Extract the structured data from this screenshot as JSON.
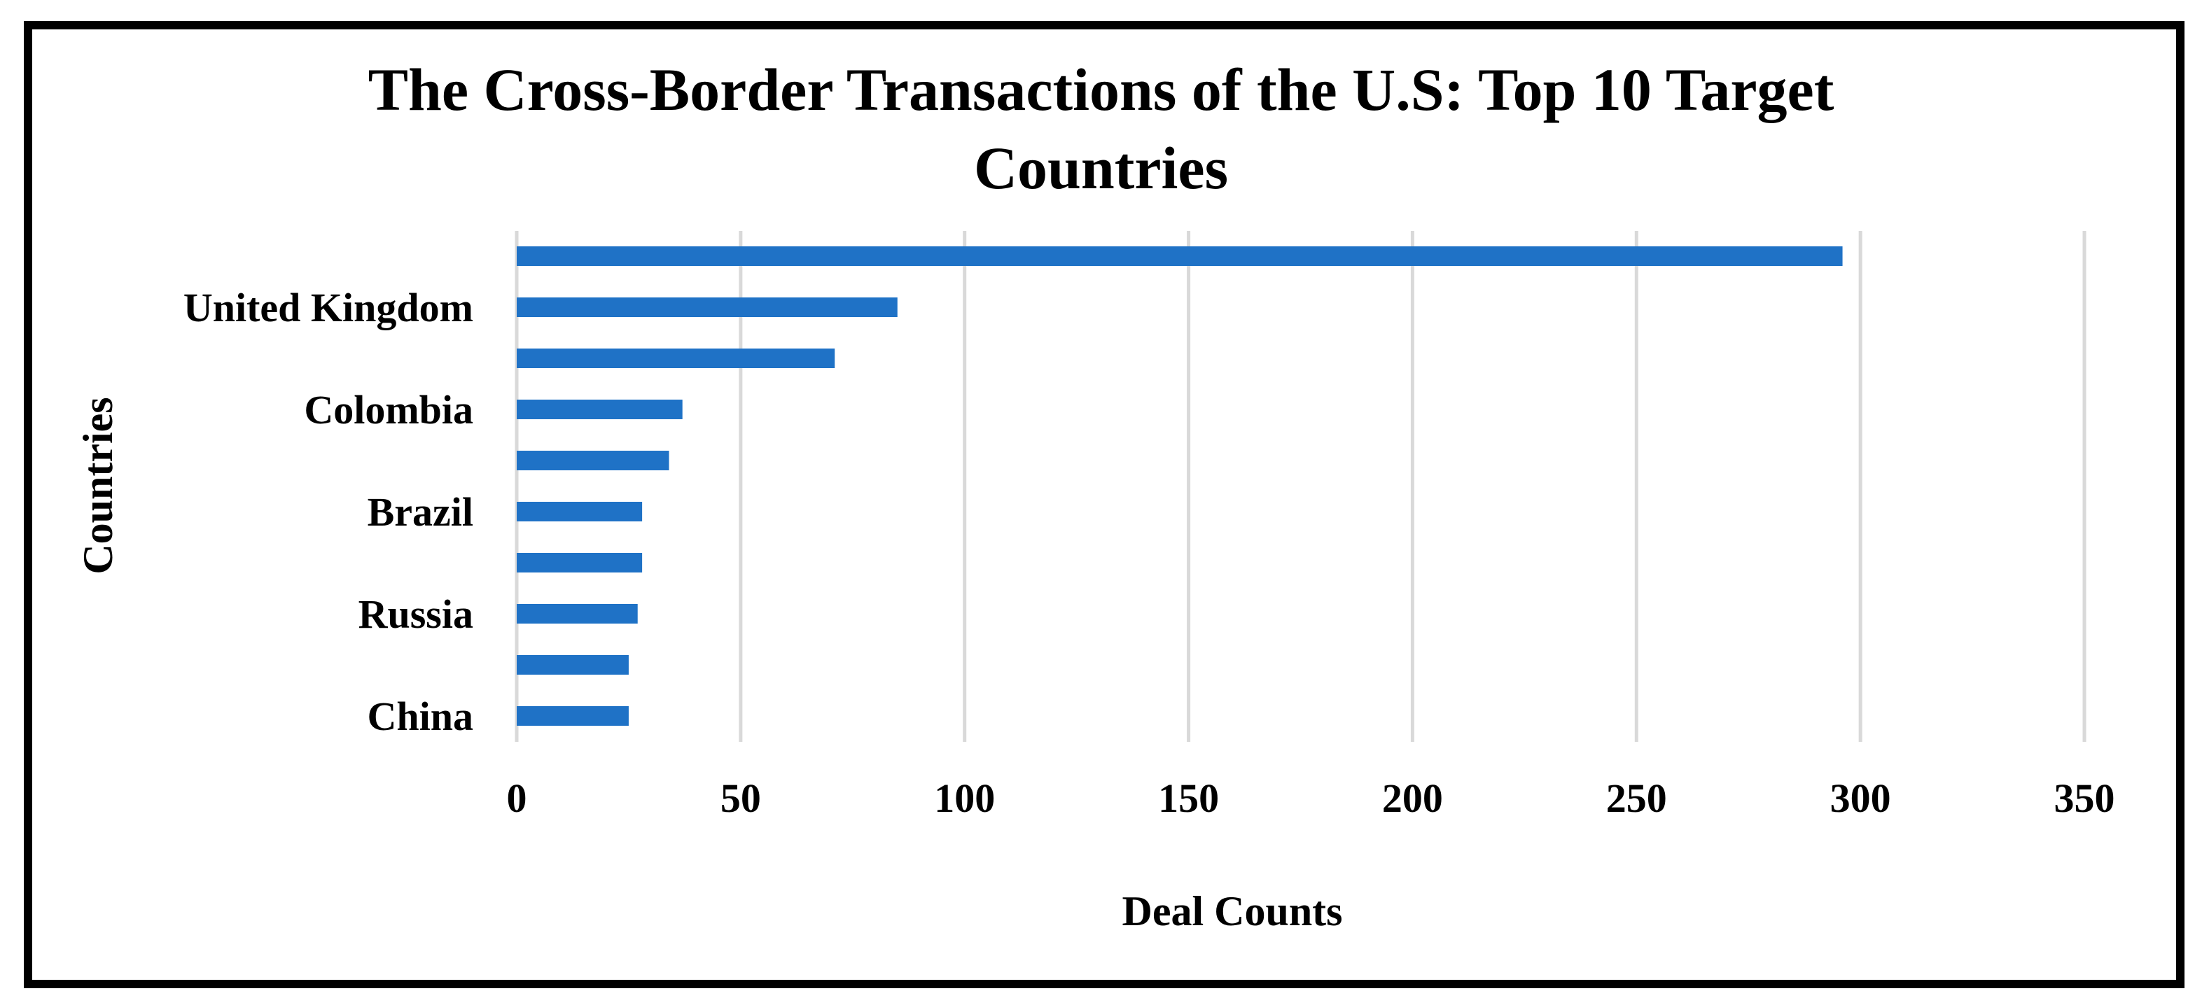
{
  "chart_data": {
    "type": "bar",
    "orientation": "horizontal",
    "title_lines": [
      "The Cross-Border Transactions of the U.S: Top 10 Target",
      "Countries"
    ],
    "xlabel": "Deal Counts",
    "ylabel": "Countries",
    "xlim": [
      0,
      350
    ],
    "xticks": [
      0,
      50,
      100,
      150,
      200,
      250,
      300,
      350
    ],
    "grid": true,
    "legend": "none",
    "categories": [
      "",
      "United Kingdom",
      "",
      "Colombia",
      "",
      "Brazil",
      "",
      "Russia",
      "",
      "China"
    ],
    "values": [
      296,
      85,
      71,
      37,
      34,
      28,
      28,
      27,
      25,
      25
    ],
    "bar_color": "#1f72c6",
    "grid_color": "#d9d9d9"
  }
}
